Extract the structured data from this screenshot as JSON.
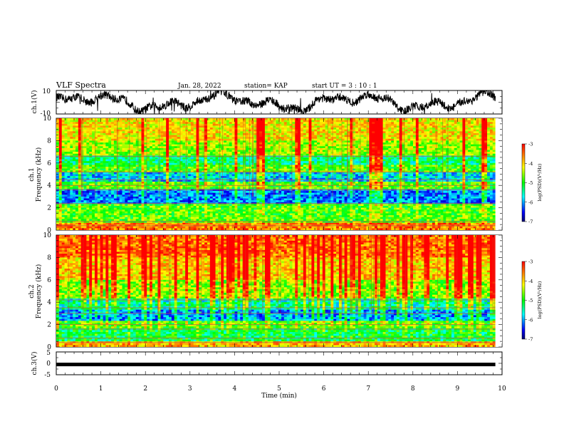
{
  "header": {
    "title": "VLF Spectra",
    "date": "Jan. 28, 2022",
    "station": "station= KAP",
    "start_time": "start  UT =  3 : 10 : 1"
  },
  "chart_data": [
    {
      "type": "line",
      "id": "ch1-waveform",
      "ylabel": "ch.1(V)",
      "ylim": [
        -10,
        10
      ],
      "ytick_labels": [
        "10",
        "-10"
      ],
      "xlim": [
        0,
        10
      ],
      "x_end": 9.85,
      "pattern": "noisy waveform mostly between about -9 V and +9 V"
    },
    {
      "type": "heatmap",
      "id": "ch1-spectrogram",
      "ylabel": "ch.1\nFrequency (kHz)",
      "ylim": [
        0,
        10
      ],
      "yticks": [
        0,
        2,
        4,
        6,
        8,
        10
      ],
      "xlim": [
        0,
        10
      ],
      "x_end": 9.85,
      "horizontal_lines_khz": [
        0.4,
        0.8,
        2.4,
        3.6,
        4.0,
        4.5,
        5.2,
        6.6
      ],
      "colorbar": {
        "label": "log(PSD)(V²/Hz)",
        "range": [
          -7,
          -3
        ],
        "ticks": [
          "-3",
          "-4",
          "-5",
          "-6",
          "-7"
        ]
      }
    },
    {
      "type": "heatmap",
      "id": "ch2-spectrogram",
      "ylabel": "ch.2\nFrequency (kHz)",
      "ylim": [
        0,
        10
      ],
      "yticks": [
        0,
        2,
        4,
        6,
        8,
        10
      ],
      "xlim": [
        0,
        10
      ],
      "x_end": 9.85,
      "horizontal_lines_khz": [
        0.4,
        0.8,
        1.6,
        2.0,
        3.0,
        3.5,
        4.2
      ],
      "colorbar": {
        "label": "log(PSD)(V²/Hz)",
        "range": [
          -7,
          -3
        ],
        "ticks": [
          "-3",
          "-4",
          "-5",
          "-6",
          "-7"
        ]
      }
    },
    {
      "type": "line",
      "id": "ch3-waveform",
      "ylabel": "ch.3(V)",
      "ylim": [
        -5,
        5
      ],
      "ytick_labels": [
        "5",
        "0",
        "-5"
      ],
      "xlim": [
        0,
        10
      ],
      "x_end": 9.85,
      "constant_value": -0.5
    }
  ],
  "xaxis": {
    "label": "Time (min)",
    "ticks": [
      "0",
      "1",
      "2",
      "3",
      "4",
      "5",
      "6",
      "7",
      "8",
      "9",
      "10"
    ]
  },
  "colors": {
    "waveform": "#000000",
    "colormap": [
      "#000090",
      "#0000ff",
      "#00ffff",
      "#00ff00",
      "#ffff00",
      "#ff0000"
    ]
  }
}
